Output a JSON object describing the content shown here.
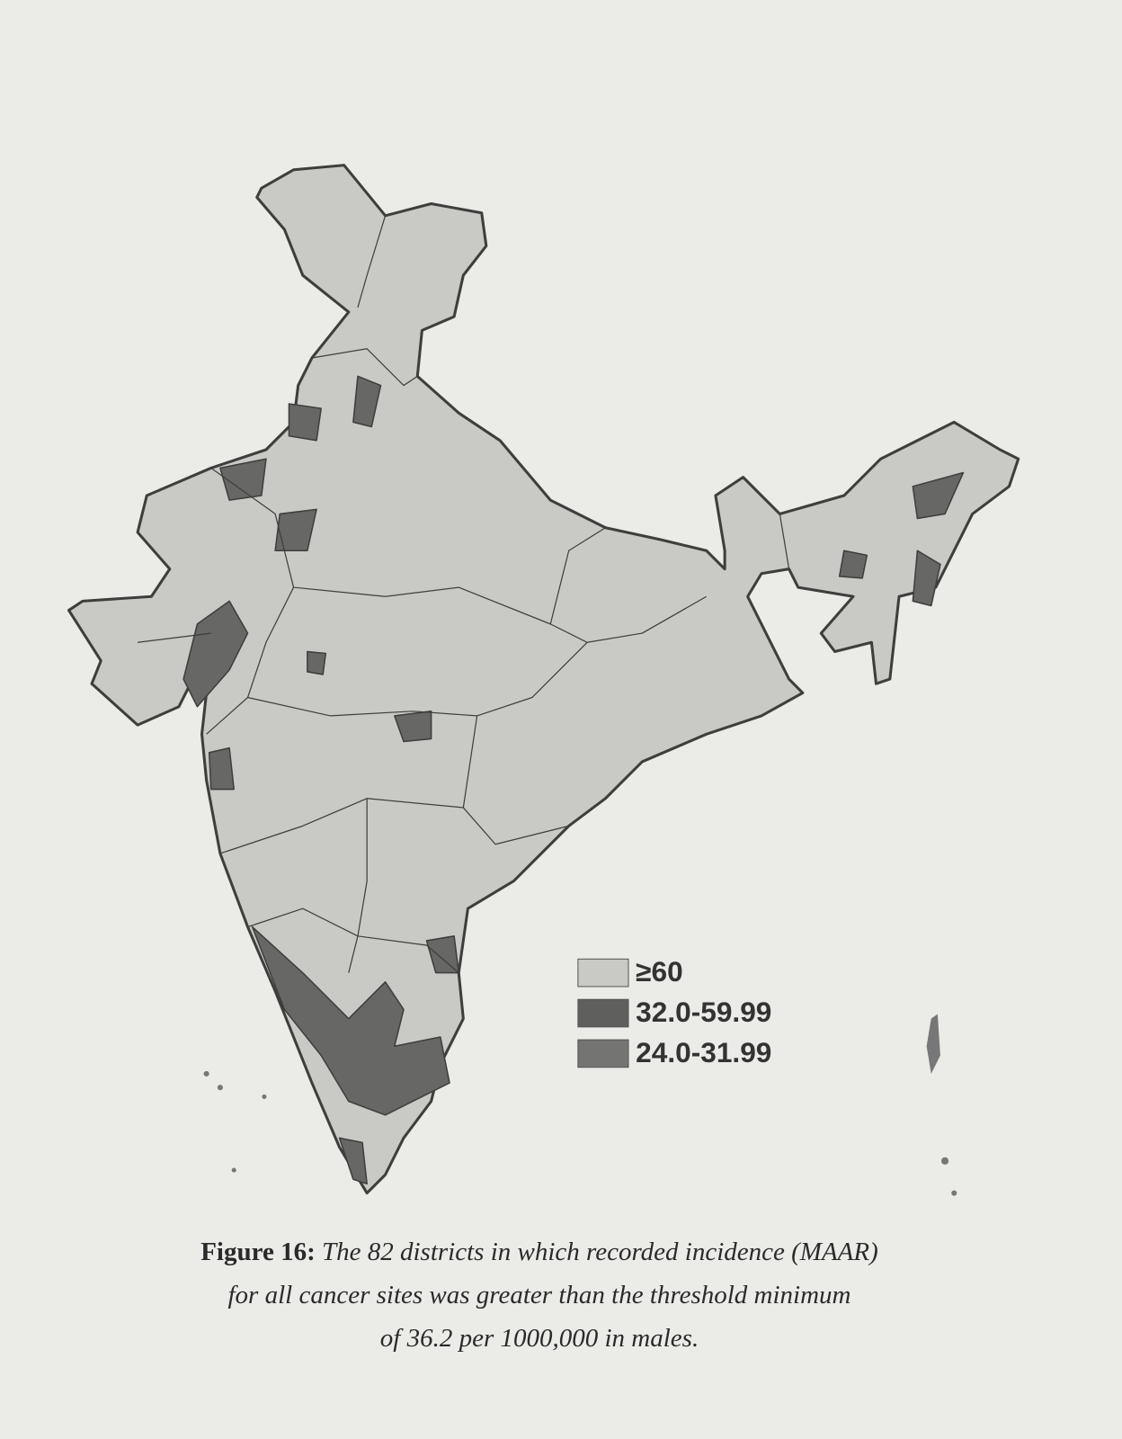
{
  "legend": {
    "items": [
      {
        "label": "≥60",
        "color": "#c9c9c5"
      },
      {
        "label": "32.0-59.99",
        "color": "#5f5f5d"
      },
      {
        "label": "24.0-31.99",
        "color": "#747472"
      }
    ]
  },
  "caption": {
    "label": "Figure 16:",
    "lines": [
      "The 82 districts in which recorded incidence (MAAR)",
      "for all cancer sites was greater than the threshold minimum",
      "of 36.2 per 1000,000 in males."
    ]
  }
}
